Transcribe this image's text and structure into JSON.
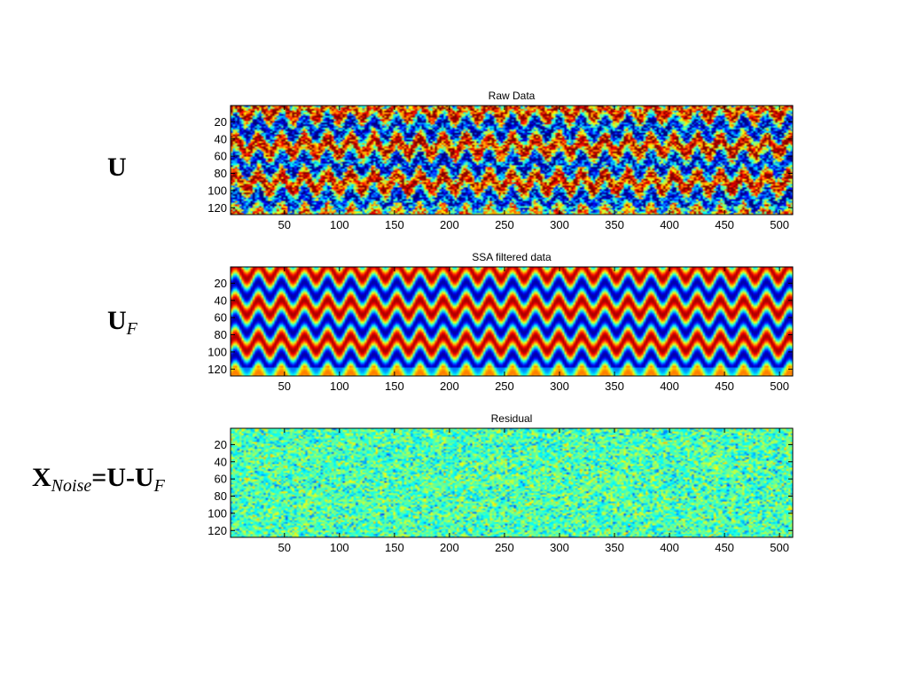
{
  "equation_labels": {
    "u": {
      "main": "U"
    },
    "uf": {
      "main": "U",
      "sub": "F"
    },
    "xnoise": {
      "x": "X",
      "x_sub": "Noise",
      "eq": "=U-U",
      "eq_sub": "F"
    }
  },
  "chart_data": [
    {
      "type": "heatmap",
      "title": "Raw Data",
      "xlabel": "",
      "ylabel": "",
      "x_ticks": [
        50,
        100,
        150,
        200,
        250,
        300,
        350,
        400,
        450,
        500
      ],
      "y_ticks": [
        20,
        40,
        60,
        80,
        100,
        120
      ],
      "xlim": [
        1,
        512
      ],
      "ylim": [
        1,
        128
      ],
      "y_direction": "reversed",
      "colormap": "jet",
      "pattern": "periodic bands with noise",
      "band_period_rows": 42,
      "band_period_cols": 21,
      "noise_level": 0.28
    },
    {
      "type": "heatmap",
      "title": "SSA filtered data",
      "xlabel": "",
      "ylabel": "",
      "x_ticks": [
        50,
        100,
        150,
        200,
        250,
        300,
        350,
        400,
        450,
        500
      ],
      "y_ticks": [
        20,
        40,
        60,
        80,
        100,
        120
      ],
      "xlim": [
        1,
        512
      ],
      "ylim": [
        1,
        128
      ],
      "y_direction": "reversed",
      "colormap": "jet",
      "pattern": "periodic bands, smooth",
      "band_period_rows": 42,
      "band_period_cols": 21,
      "noise_level": 0.0
    },
    {
      "type": "heatmap",
      "title": "Residual",
      "xlabel": "",
      "ylabel": "",
      "x_ticks": [
        50,
        100,
        150,
        200,
        250,
        300,
        350,
        400,
        450,
        500
      ],
      "y_ticks": [
        20,
        40,
        60,
        80,
        100,
        120
      ],
      "xlim": [
        1,
        512
      ],
      "ylim": [
        1,
        128
      ],
      "y_direction": "reversed",
      "colormap": "jet",
      "pattern": "random noise",
      "noise_level": 0.12
    }
  ],
  "colors": {
    "axis": "#000000",
    "background": "#ffffff",
    "jet_mid": "#40e0c0"
  }
}
